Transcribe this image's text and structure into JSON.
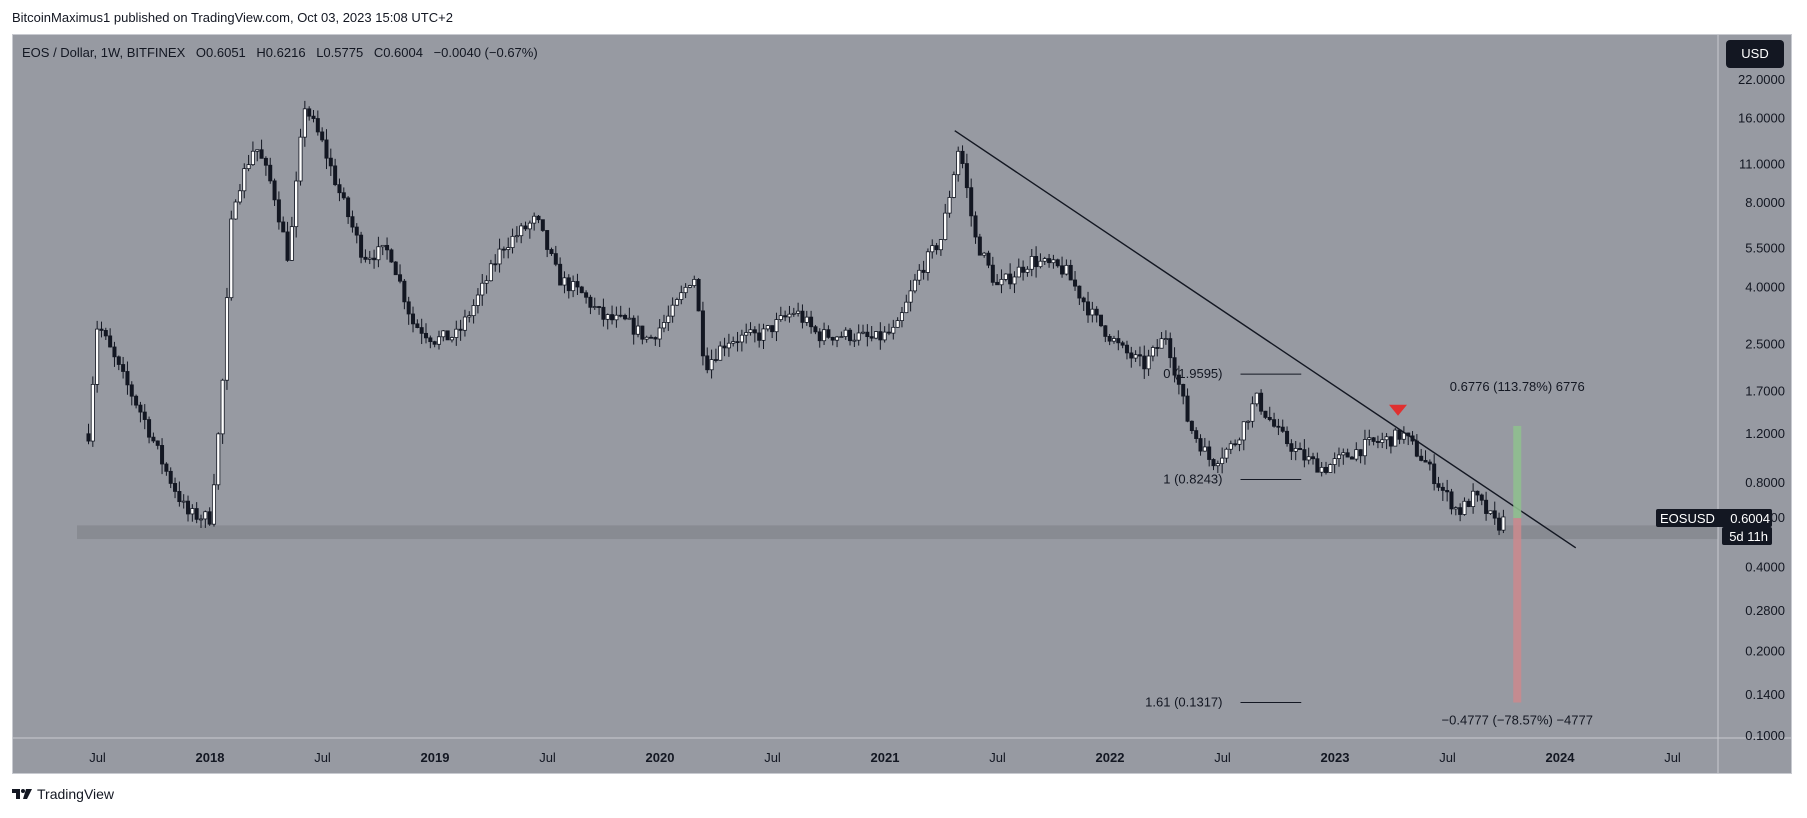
{
  "header": {
    "attribution": "BitcoinMaximus1 published on TradingView.com, Oct 03, 2023 15:08 UTC+2"
  },
  "legend": {
    "symbol": "EOS / Dollar, 1W, BITFINEX",
    "open_key": "O",
    "open": "0.6051",
    "high_key": "H",
    "high": "0.6216",
    "low_key": "L",
    "low": "0.5775",
    "close_key": "C",
    "close": "0.6004",
    "change": "−0.0040 (−0.67%)"
  },
  "currency_button": "USD",
  "price_badge": {
    "symbol": "EOSUSD",
    "price": "0.6004",
    "countdown": "5d 11h"
  },
  "footer": {
    "brand": "TradingView"
  },
  "colors": {
    "background": "#979aa2",
    "candles": "#131722",
    "support_zone": "#85888f",
    "target_up": "#8fbf8f",
    "target_down": "#c98a8e",
    "marker": "#e03030"
  },
  "chart_data": {
    "type": "candlestick",
    "scale": "log",
    "x_tick_labels": [
      "Jul",
      "2018",
      "Jul",
      "2019",
      "Jul",
      "2020",
      "Jul",
      "2021",
      "Jul",
      "2022",
      "Jul",
      "2023",
      "Jul",
      "2024",
      "Jul"
    ],
    "x_ticks": [
      "2017-07",
      "2018-01",
      "2018-07",
      "2019-01",
      "2019-07",
      "2020-01",
      "2020-07",
      "2021-01",
      "2021-07",
      "2022-01",
      "2022-07",
      "2023-01",
      "2023-07",
      "2024-01",
      "2024-07"
    ],
    "y_tick_labels": [
      "22.0000",
      "16.0000",
      "11.0000",
      "8.0000",
      "5.5000",
      "4.0000",
      "2.5000",
      "1.7000",
      "1.2000",
      "0.8000",
      "0.6000",
      "0.4000",
      "0.2800",
      "0.2000",
      "0.1400",
      "0.1000"
    ],
    "y_ticks": [
      22,
      16,
      11,
      8,
      5.5,
      4,
      2.5,
      1.7,
      1.2,
      0.8,
      0.6,
      0.4,
      0.28,
      0.2,
      0.14,
      0.1
    ],
    "ylim": [
      0.1,
      24
    ],
    "trend_points": [
      {
        "t": 2017.46,
        "v": 1.2
      },
      {
        "t": 2017.5,
        "v": 3.0
      },
      {
        "t": 2017.6,
        "v": 2.0
      },
      {
        "t": 2017.7,
        "v": 1.4
      },
      {
        "t": 2017.8,
        "v": 0.9
      },
      {
        "t": 2017.9,
        "v": 0.62
      },
      {
        "t": 2018.0,
        "v": 0.6
      },
      {
        "t": 2018.05,
        "v": 1.5
      },
      {
        "t": 2018.1,
        "v": 8.0
      },
      {
        "t": 2018.2,
        "v": 13.0
      },
      {
        "t": 2018.28,
        "v": 9.0
      },
      {
        "t": 2018.35,
        "v": 5.0
      },
      {
        "t": 2018.42,
        "v": 18.0
      },
      {
        "t": 2018.5,
        "v": 13.0
      },
      {
        "t": 2018.58,
        "v": 8.5
      },
      {
        "t": 2018.68,
        "v": 5.2
      },
      {
        "t": 2018.8,
        "v": 5.4
      },
      {
        "t": 2018.9,
        "v": 3.0
      },
      {
        "t": 2019.0,
        "v": 2.6
      },
      {
        "t": 2019.1,
        "v": 2.7
      },
      {
        "t": 2019.2,
        "v": 3.8
      },
      {
        "t": 2019.3,
        "v": 5.6
      },
      {
        "t": 2019.45,
        "v": 7.0
      },
      {
        "t": 2019.55,
        "v": 4.3
      },
      {
        "t": 2019.65,
        "v": 3.8
      },
      {
        "t": 2019.75,
        "v": 3.1
      },
      {
        "t": 2019.85,
        "v": 3.0
      },
      {
        "t": 2019.95,
        "v": 2.6
      },
      {
        "t": 2020.05,
        "v": 3.2
      },
      {
        "t": 2020.15,
        "v": 4.5
      },
      {
        "t": 2020.2,
        "v": 2.1
      },
      {
        "t": 2020.3,
        "v": 2.6
      },
      {
        "t": 2020.45,
        "v": 2.7
      },
      {
        "t": 2020.6,
        "v": 3.3
      },
      {
        "t": 2020.7,
        "v": 2.7
      },
      {
        "t": 2020.85,
        "v": 2.7
      },
      {
        "t": 2020.95,
        "v": 2.6
      },
      {
        "t": 2021.05,
        "v": 2.8
      },
      {
        "t": 2021.15,
        "v": 4.5
      },
      {
        "t": 2021.25,
        "v": 6.0
      },
      {
        "t": 2021.33,
        "v": 13.0
      },
      {
        "t": 2021.4,
        "v": 6.0
      },
      {
        "t": 2021.5,
        "v": 4.0
      },
      {
        "t": 2021.65,
        "v": 5.0
      },
      {
        "t": 2021.8,
        "v": 4.6
      },
      {
        "t": 2021.92,
        "v": 3.2
      },
      {
        "t": 2022.05,
        "v": 2.4
      },
      {
        "t": 2022.15,
        "v": 2.1
      },
      {
        "t": 2022.25,
        "v": 2.7
      },
      {
        "t": 2022.35,
        "v": 1.3
      },
      {
        "t": 2022.45,
        "v": 0.95
      },
      {
        "t": 2022.55,
        "v": 1.1
      },
      {
        "t": 2022.65,
        "v": 1.6
      },
      {
        "t": 2022.75,
        "v": 1.2
      },
      {
        "t": 2022.85,
        "v": 1.0
      },
      {
        "t": 2022.95,
        "v": 0.9
      },
      {
        "t": 2023.05,
        "v": 1.0
      },
      {
        "t": 2023.15,
        "v": 1.1
      },
      {
        "t": 2023.25,
        "v": 1.15
      },
      {
        "t": 2023.3,
        "v": 1.2
      },
      {
        "t": 2023.4,
        "v": 0.95
      },
      {
        "t": 2023.48,
        "v": 0.75
      },
      {
        "t": 2023.55,
        "v": 0.63
      },
      {
        "t": 2023.62,
        "v": 0.72
      },
      {
        "t": 2023.68,
        "v": 0.62
      },
      {
        "t": 2023.72,
        "v": 0.56
      },
      {
        "t": 2023.76,
        "v": 0.6
      }
    ],
    "annotations": {
      "fib_0": "0 (1.9595)",
      "fib_1": "1 (0.8243)",
      "fib_161": "1.61 (0.1317)",
      "target_up": "0.6776 (113.78%) 6776",
      "target_down": "−0.4777 (−78.57%) −4777"
    }
  }
}
